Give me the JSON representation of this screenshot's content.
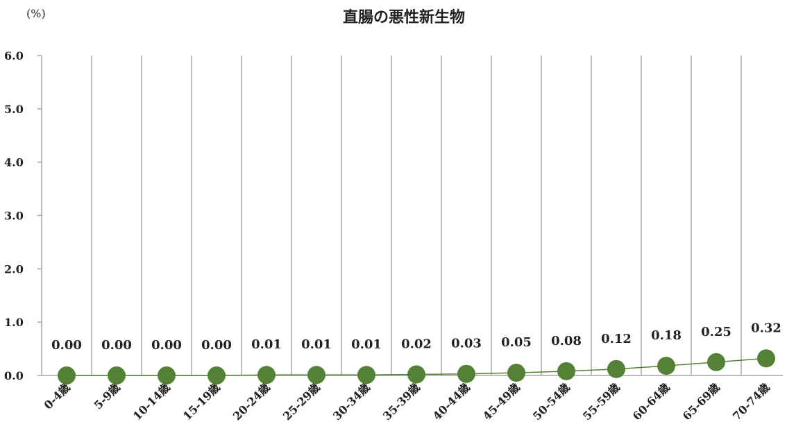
{
  "chart_data": {
    "type": "line",
    "title": "直腸の悪性新生物",
    "unit_label": "(%)",
    "categories": [
      "0-4歳",
      "5-9歳",
      "10-14歳",
      "15-19歳",
      "20-24歳",
      "25-29歳",
      "30-34歳",
      "35-39歳",
      "40-44歳",
      "45-49歳",
      "50-54歳",
      "55-59歳",
      "60-64歳",
      "65-69歳",
      "70-74歳"
    ],
    "values": [
      0.0,
      0.0,
      0.0,
      0.0,
      0.01,
      0.01,
      0.01,
      0.02,
      0.03,
      0.05,
      0.08,
      0.12,
      0.18,
      0.25,
      0.32
    ],
    "data_labels": [
      "0.00",
      "0.00",
      "0.00",
      "0.00",
      "0.01",
      "0.01",
      "0.01",
      "0.02",
      "0.03",
      "0.05",
      "0.08",
      "0.12",
      "0.18",
      "0.25",
      "0.32"
    ],
    "y_ticks": [
      "0.0",
      "1.0",
      "2.0",
      "3.0",
      "4.0",
      "5.0",
      "6.0"
    ],
    "ylim": [
      0,
      6
    ],
    "grid": "vertical",
    "legend": "none",
    "colors": {
      "marker": "#538135",
      "line": "#538135",
      "grid": "#a6a6a6"
    }
  }
}
